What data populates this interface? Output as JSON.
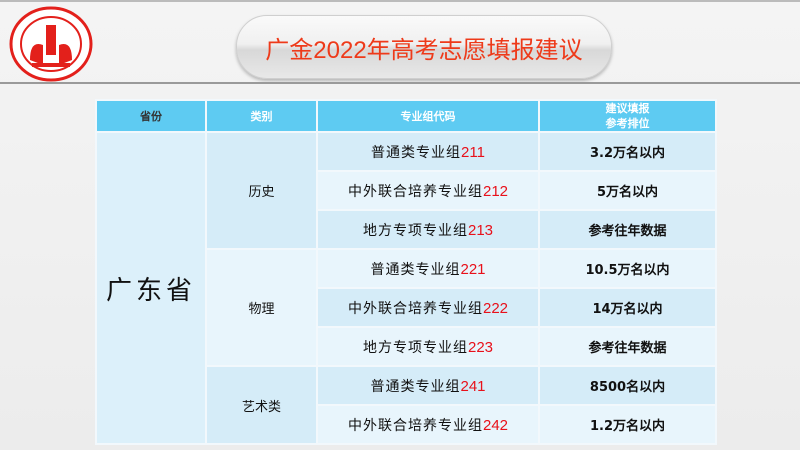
{
  "logo": {
    "text": "UNIVERSITY OF FINANCE",
    "colors": {
      "red": "#e3201b"
    }
  },
  "title": "广金2022年高考志愿填报建议",
  "table": {
    "headers": [
      "省份",
      "类别",
      "专业组代码",
      "建议填报\n参考排位"
    ],
    "province": "广东省",
    "categories": [
      {
        "name": "历史",
        "rows": [
          {
            "group": "普通类专业组",
            "code": "211",
            "rank": "3.2万名以内"
          },
          {
            "group": "中外联合培养专业组",
            "code": "212",
            "rank": "5万名以内"
          },
          {
            "group": "地方专项专业组",
            "code": "213",
            "rank": "参考往年数据"
          }
        ]
      },
      {
        "name": "物理",
        "rows": [
          {
            "group": "普通类专业组",
            "code": "221",
            "rank": "10.5万名以内"
          },
          {
            "group": "中外联合培养专业组",
            "code": "222",
            "rank": "14万名以内"
          },
          {
            "group": "地方专项专业组",
            "code": "223",
            "rank": "参考往年数据"
          }
        ]
      },
      {
        "name": "艺术类",
        "rows": [
          {
            "group": "普通类专业组",
            "code": "241",
            "rank": "8500名以内"
          },
          {
            "group": "中外联合培养专业组",
            "code": "242",
            "rank": "1.2万名以内"
          }
        ]
      }
    ]
  },
  "colors": {
    "header": "#5ecbf2",
    "row_dark": "#d5ecf8",
    "row_light": "#e8f5fc",
    "title": "#ee3a1a",
    "code": "#e8101a"
  }
}
